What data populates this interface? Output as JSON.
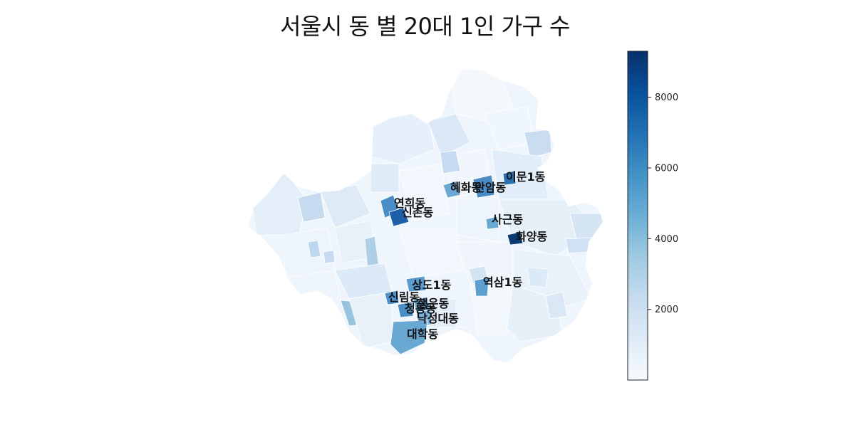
{
  "title": "서울시 동 별 20대 1인 가구 수",
  "colorbar": {
    "min": 0,
    "max": 9300,
    "ticks": [
      {
        "value": 2000,
        "label": "2000"
      },
      {
        "value": 4000,
        "label": "4000"
      },
      {
        "value": 6000,
        "label": "6000"
      },
      {
        "value": 8000,
        "label": "8000"
      }
    ],
    "colors": [
      "#f7fbff",
      "#deebf7",
      "#c6dbef",
      "#9ecae1",
      "#6baed6",
      "#4292c6",
      "#2171b5",
      "#08519c",
      "#08306b"
    ]
  },
  "labels": [
    {
      "text": "이문1동",
      "value": 7400
    },
    {
      "text": "혜화동",
      "value": 4300
    },
    {
      "text": "안암동",
      "value": 5200
    },
    {
      "text": "연희동",
      "value": 5200
    },
    {
      "text": "신촌동",
      "value": 7800
    },
    {
      "text": "사근동",
      "value": 4200
    },
    {
      "text": "화양동",
      "value": 9300
    },
    {
      "text": "역삼1동",
      "value": 4600
    },
    {
      "text": "상도1동",
      "value": 4400
    },
    {
      "text": "신림동",
      "value": 5000
    },
    {
      "text": "청룡동",
      "value": 5400
    },
    {
      "text": "행운동",
      "value": 4400
    },
    {
      "text": "낙성대동",
      "value": 4000
    },
    {
      "text": "대학동",
      "value": 4300
    }
  ]
}
